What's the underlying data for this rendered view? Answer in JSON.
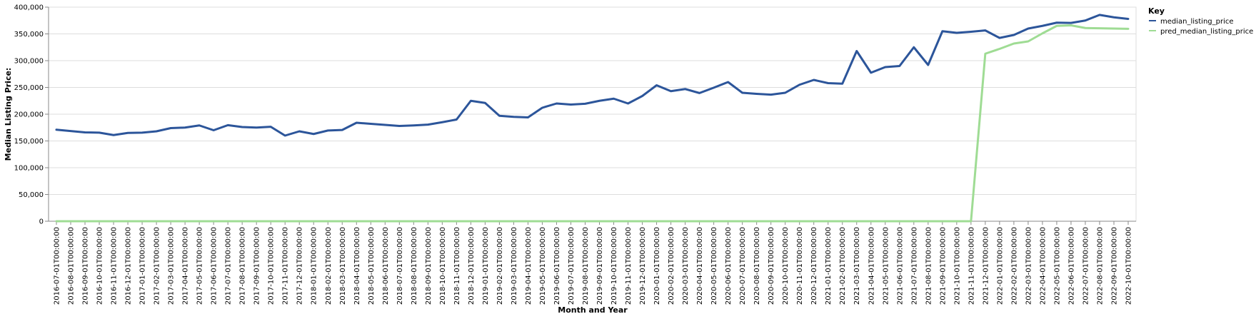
{
  "chart_data": {
    "type": "line",
    "xlabel": "Month and Year",
    "ylabel": "Median Listing Price:",
    "ylim": [
      0,
      400000
    ],
    "yticks": [
      0,
      50000,
      100000,
      150000,
      200000,
      250000,
      300000,
      350000,
      400000
    ],
    "ytick_labels": [
      "0",
      "50,000",
      "100,000",
      "150,000",
      "200,000",
      "250,000",
      "300,000",
      "350,000",
      "400,000"
    ],
    "grid": true,
    "legend": {
      "title": "Key",
      "placement": "top-right"
    },
    "x": [
      "2016-07-01T00:00:00",
      "2016-08-01T00:00:00",
      "2016-09-01T00:00:00",
      "2016-10-01T00:00:00",
      "2016-11-01T00:00:00",
      "2016-12-01T00:00:00",
      "2017-01-01T00:00:00",
      "2017-02-01T00:00:00",
      "2017-03-01T00:00:00",
      "2017-04-01T00:00:00",
      "2017-05-01T00:00:00",
      "2017-06-01T00:00:00",
      "2017-07-01T00:00:00",
      "2017-08-01T00:00:00",
      "2017-09-01T00:00:00",
      "2017-10-01T00:00:00",
      "2017-11-01T00:00:00",
      "2017-12-01T00:00:00",
      "2018-01-01T00:00:00",
      "2018-02-01T00:00:00",
      "2018-03-01T00:00:00",
      "2018-04-01T00:00:00",
      "2018-05-01T00:00:00",
      "2018-06-01T00:00:00",
      "2018-07-01T00:00:00",
      "2018-08-01T00:00:00",
      "2018-09-01T00:00:00",
      "2018-10-01T00:00:00",
      "2018-11-01T00:00:00",
      "2018-12-01T00:00:00",
      "2019-01-01T00:00:00",
      "2019-02-01T00:00:00",
      "2019-03-01T00:00:00",
      "2019-04-01T00:00:00",
      "2019-05-01T00:00:00",
      "2019-06-01T00:00:00",
      "2019-07-01T00:00:00",
      "2019-08-01T00:00:00",
      "2019-09-01T00:00:00",
      "2019-10-01T00:00:00",
      "2019-11-01T00:00:00",
      "2019-12-01T00:00:00",
      "2020-01-01T00:00:00",
      "2020-02-01T00:00:00",
      "2020-03-01T00:00:00",
      "2020-04-01T00:00:00",
      "2020-05-01T00:00:00",
      "2020-06-01T00:00:00",
      "2020-07-01T00:00:00",
      "2020-08-01T00:00:00",
      "2020-09-01T00:00:00",
      "2020-10-01T00:00:00",
      "2020-11-01T00:00:00",
      "2020-12-01T00:00:00",
      "2021-01-01T00:00:00",
      "2021-02-01T00:00:00",
      "2021-03-01T00:00:00",
      "2021-04-01T00:00:00",
      "2021-05-01T00:00:00",
      "2021-06-01T00:00:00",
      "2021-07-01T00:00:00",
      "2021-08-01T00:00:00",
      "2021-09-01T00:00:00",
      "2021-10-01T00:00:00",
      "2021-11-01T00:00:00",
      "2021-12-01T00:00:00",
      "2022-01-01T00:00:00",
      "2022-02-01T00:00:00",
      "2022-03-01T00:00:00",
      "2022-04-01T00:00:00",
      "2022-05-01T00:00:00",
      "2022-06-01T00:00:00",
      "2022-07-01T00:00:00",
      "2022-08-01T00:00:00",
      "2022-09-01T00:00:00",
      "2022-10-01T00:00:00"
    ],
    "series": [
      {
        "name": "median_listing_price",
        "color": "#2c559a",
        "values": [
          171000,
          168500,
          166000,
          165500,
          161000,
          165000,
          165500,
          168000,
          174000,
          175000,
          179000,
          170000,
          179500,
          176000,
          175000,
          176500,
          160000,
          168000,
          163000,
          169500,
          170500,
          184000,
          182000,
          180000,
          178000,
          179000,
          180500,
          185000,
          190000,
          225000,
          221000,
          197000,
          195000,
          194000,
          212000,
          220000,
          218000,
          219500,
          225000,
          229000,
          220000,
          234000,
          254000,
          243000,
          247000,
          239500,
          249500,
          260000,
          240000,
          238000,
          236500,
          240000,
          255000,
          264000,
          258000,
          257000,
          318000,
          277500,
          288000,
          290000,
          325000,
          292000,
          355000,
          352000,
          354000,
          356500,
          342500,
          348000,
          360000,
          365000,
          371000,
          370500,
          375000,
          385500,
          381000,
          378000
        ]
      },
      {
        "name": "pred_median_listing_price",
        "color": "#9fdc94",
        "values": [
          0,
          0,
          0,
          0,
          0,
          0,
          0,
          0,
          0,
          0,
          0,
          0,
          0,
          0,
          0,
          0,
          0,
          0,
          0,
          0,
          0,
          0,
          0,
          0,
          0,
          0,
          0,
          0,
          0,
          0,
          0,
          0,
          0,
          0,
          0,
          0,
          0,
          0,
          0,
          0,
          0,
          0,
          0,
          0,
          0,
          0,
          0,
          0,
          0,
          0,
          0,
          0,
          0,
          0,
          0,
          0,
          0,
          0,
          0,
          0,
          0,
          0,
          0,
          0,
          0,
          313000,
          322000,
          332000,
          336000,
          351000,
          365000,
          366000,
          361000,
          360500,
          360000,
          359500
        ]
      }
    ]
  }
}
